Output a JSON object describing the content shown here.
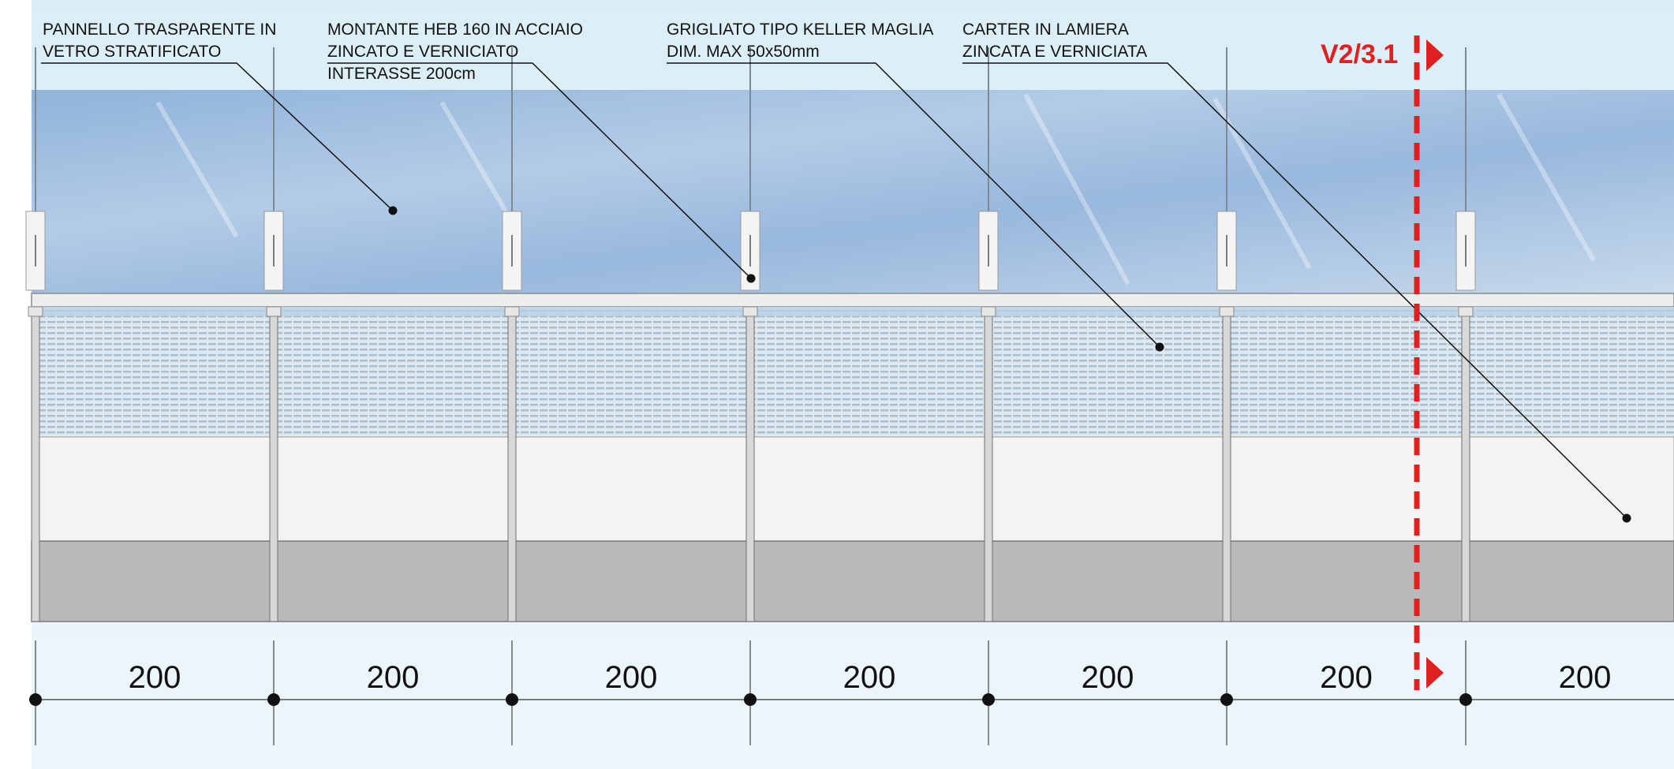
{
  "annotations": {
    "glass_panel": [
      "PANNELLO TRASPARENTE IN",
      "VETRO STRATIFICATO"
    ],
    "post": [
      "MONTANTE HEB 160 IN ACCIAIO",
      "ZINCATO E VERNICIATO",
      "INTERASSE 200cm"
    ],
    "grating": [
      "GRIGLIATO TIPO KELLER MAGLIA",
      "DIM. MAX 50x50mm"
    ],
    "casing": [
      "CARTER IN LAMIERA",
      "ZINCATA E VERNICIATA"
    ]
  },
  "section_marker": {
    "label": "V2/3.1",
    "color": "#e01f1f"
  },
  "dimensions": {
    "unit": "cm",
    "values": [
      "200",
      "200",
      "200",
      "200",
      "200",
      "200",
      "200"
    ]
  },
  "colors": {
    "glass": "#9fbfe0",
    "grating": "#cfdbe6",
    "casing": "#b9b9b9",
    "sky": "#e6f3f8",
    "marker": "#e01f1f"
  }
}
